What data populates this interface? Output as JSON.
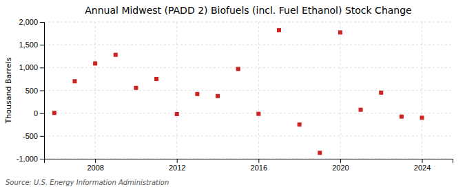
{
  "chart_data": {
    "type": "scatter",
    "title": "Annual Midwest (PADD 2) Biofuels (incl. Fuel Ethanol) Stock Change",
    "ylabel": "Thousand Barrels",
    "annotations": [
      "Source: U.S. Energy Information Administration"
    ],
    "x": [
      2006,
      2007,
      2008,
      2009,
      2010,
      2011,
      2012,
      2013,
      2014,
      2015,
      2016,
      2017,
      2018,
      2019,
      2020,
      2021,
      2022,
      2023,
      2024
    ],
    "values": [
      5,
      700,
      1090,
      1280,
      555,
      750,
      -20,
      420,
      375,
      970,
      -15,
      1820,
      -250,
      -870,
      1770,
      75,
      450,
      -75,
      -100
    ],
    "color": "#cc2222",
    "marker": "square",
    "xlim": [
      2005.5,
      2025.5
    ],
    "xticks": [
      2008,
      2012,
      2016,
      2020,
      2024
    ],
    "ylim": [
      -1000,
      2000
    ],
    "yticks": [
      {
        "value": -1000,
        "label": "-1,000"
      },
      -500,
      0,
      500,
      {
        "value": 1000,
        "label": "1,000"
      },
      {
        "value": 1500,
        "label": "1,500"
      },
      {
        "value": 2000,
        "label": "2,000"
      }
    ],
    "grid": true
  }
}
